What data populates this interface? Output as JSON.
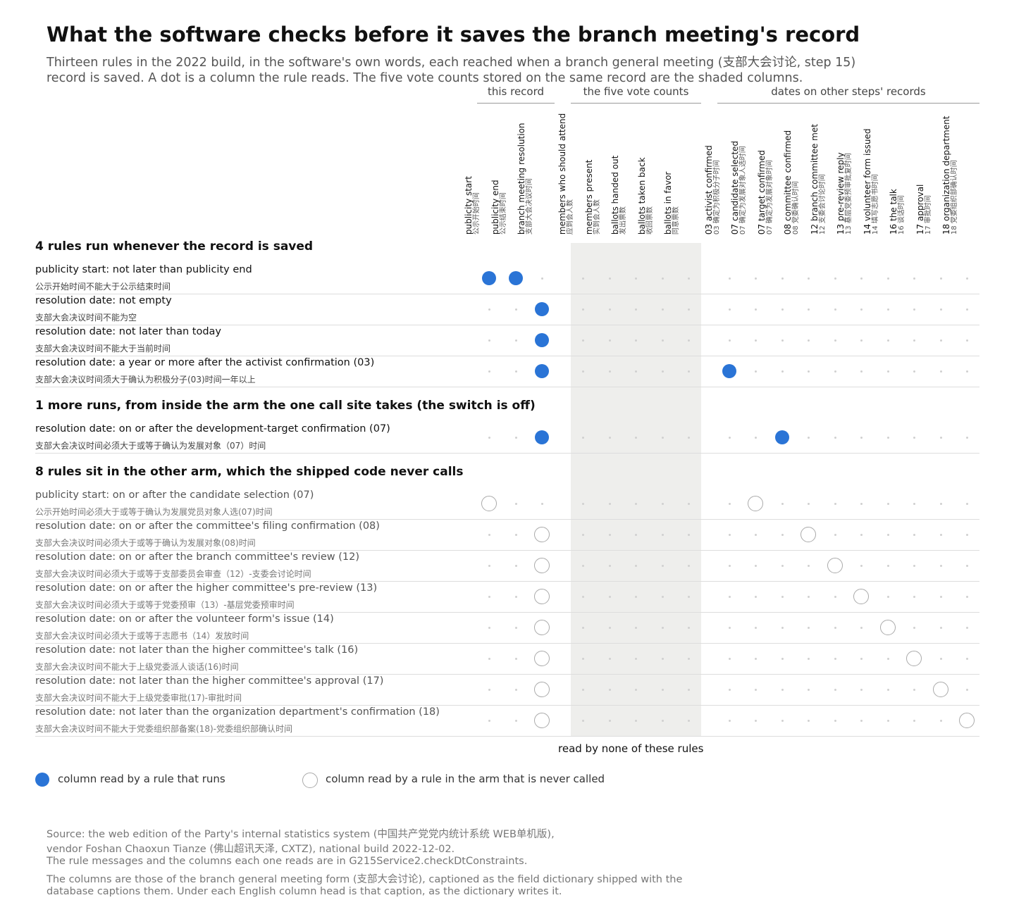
{
  "title": "What the software checks before it saves the branch meeting's record",
  "subtitle": [
    "Thirteen rules in the 2022 build, in the software's own words, each reached when a branch general meeting (支部大会讨论, step 15)",
    "record is saved. A dot is a column the rule reads. The five vote counts stored on the same record are the shaded columns."
  ],
  "colors": {
    "run": "#2a74d6",
    "never": "#aaaaaa",
    "shade": "#eeeeec"
  },
  "chart_data": {
    "type": "table",
    "groups": [
      {
        "label": "this record",
        "columns": [
          0,
          1,
          2
        ]
      },
      {
        "label": "the five vote counts",
        "columns": [
          3,
          4,
          5,
          6,
          7
        ]
      },
      {
        "label": "dates on other steps' records",
        "columns": [
          8,
          9,
          10,
          11,
          12,
          13,
          14,
          15,
          16,
          17
        ]
      }
    ],
    "columns": [
      {
        "en": "publicity start",
        "zh": "公示开始时间"
      },
      {
        "en": "publicity end",
        "zh": "公示结束时间"
      },
      {
        "en": "branch meeting resolution",
        "zh": "支部大会决议时间"
      },
      {
        "en": "members who should attend",
        "zh": "应到会人数"
      },
      {
        "en": "members present",
        "zh": "实到会人数"
      },
      {
        "en": "ballots handed out",
        "zh": "发出票数"
      },
      {
        "en": "ballots taken back",
        "zh": "收回票数"
      },
      {
        "en": "ballots in favor",
        "zh": "同意票数"
      },
      {
        "en": "03 activist confirmed",
        "zh": "03 确定为积极分子时间"
      },
      {
        "en": "07 candidate selected",
        "zh": "07 确定为发展对象人选时间"
      },
      {
        "en": "07 target confirmed",
        "zh": "07 确定为发展对象时间"
      },
      {
        "en": "08 committee confirmed",
        "zh": "08 党委确认时间"
      },
      {
        "en": "12 branch committee met",
        "zh": "12 支委会讨论时间"
      },
      {
        "en": "13 pre-review reply",
        "zh": "13 基层党委预审批复时间"
      },
      {
        "en": "14 volunteer form issued",
        "zh": "14 填写志愿书时间"
      },
      {
        "en": "16 the talk",
        "zh": "16 谈话时间"
      },
      {
        "en": "17 approval",
        "zh": "17 审批时间"
      },
      {
        "en": "18 organization department",
        "zh": "18 党委组织部确认时间"
      }
    ],
    "shaded_columns": [
      3,
      4,
      5,
      6,
      7
    ],
    "shaded_note": "read by none of these rules",
    "sections": [
      {
        "title": "4 rules run whenever the record is saved",
        "status": "run",
        "rules": [
          {
            "en": "publicity start: not later than publicity end",
            "zh": "公示开始时间不能大于公示结束时间",
            "reads": [
              0,
              1
            ]
          },
          {
            "en": "resolution date: not empty",
            "zh": "支部大会决议时间不能为空",
            "reads": [
              2
            ]
          },
          {
            "en": "resolution date: not later than today",
            "zh": "支部大会决议时间不能大于当前时间",
            "reads": [
              2
            ]
          },
          {
            "en": "resolution date: a year or more after the activist confirmation (03)",
            "zh": "支部大会决议时间须大于确认为积极分子(03)时间一年以上",
            "reads": [
              2,
              8
            ]
          }
        ]
      },
      {
        "title": "1 more runs, from inside the arm the one call site takes (the switch is off)",
        "status": "run",
        "rules": [
          {
            "en": "resolution date: on or after the development-target confirmation (07)",
            "zh": "支部大会决议时间必须大于或等于确认为发展对象（07）时间",
            "reads": [
              2,
              10
            ]
          }
        ]
      },
      {
        "title": "8 rules sit in the other arm, which the shipped code never calls",
        "status": "never",
        "rules": [
          {
            "en": "publicity start: on or after the candidate selection (07)",
            "zh": "公示开始时间必须大于或等于确认为发展党员对象人选(07)时间",
            "reads": [
              0,
              9
            ]
          },
          {
            "en": "resolution date: on or after the committee's filing confirmation (08)",
            "zh": "支部大会决议时间必须大于或等于确认为发展对象(08)时间",
            "reads": [
              2,
              11
            ]
          },
          {
            "en": "resolution date: on or after the branch committee's review (12)",
            "zh": "支部大会决议时间必须大于或等于支部委员会审查（12）-支委会讨论时间",
            "reads": [
              2,
              12
            ]
          },
          {
            "en": "resolution date: on or after the higher committee's pre-review (13)",
            "zh": "支部大会决议时间必须大于或等于党委预审（13）-基层党委预审时间",
            "reads": [
              2,
              13
            ]
          },
          {
            "en": "resolution date: on or after the volunteer form's issue (14)",
            "zh": "支部大会决议时间必须大于或等于志愿书（14）发放时间",
            "reads": [
              2,
              14
            ]
          },
          {
            "en": "resolution date: not later than the higher committee's talk (16)",
            "zh": "支部大会决议时间不能大于上级党委派人谈话(16)时间",
            "reads": [
              2,
              15
            ]
          },
          {
            "en": "resolution date: not later than the higher committee's approval (17)",
            "zh": "支部大会决议时间不能大于上级党委审批(17)-审批时间",
            "reads": [
              2,
              16
            ]
          },
          {
            "en": "resolution date: not later than the organization department's confirmation (18)",
            "zh": "支部大会决议时间不能大于党委组织部备案(18)-党委组织部确认时间",
            "reads": [
              2,
              17
            ]
          }
        ]
      }
    ]
  },
  "legend": {
    "run": "column read by a rule that runs",
    "never": "column read by a rule in the arm that is never called"
  },
  "source": [
    "Source: the web edition of the Party's internal statistics system (中国共产党党内统计系统 WEB单机版),",
    "vendor Foshan Chaoxun Tianze (佛山超讯天泽, CXTZ), national build 2022-12-02.",
    "The rule messages and the columns each one reads are in G215Service2.checkDtConstraints.",
    "The columns are those of the branch general meeting form (支部大会讨论), captioned as the field dictionary shipped with the",
    "database captions them. Under each English column head is that caption, as the dictionary writes it."
  ]
}
